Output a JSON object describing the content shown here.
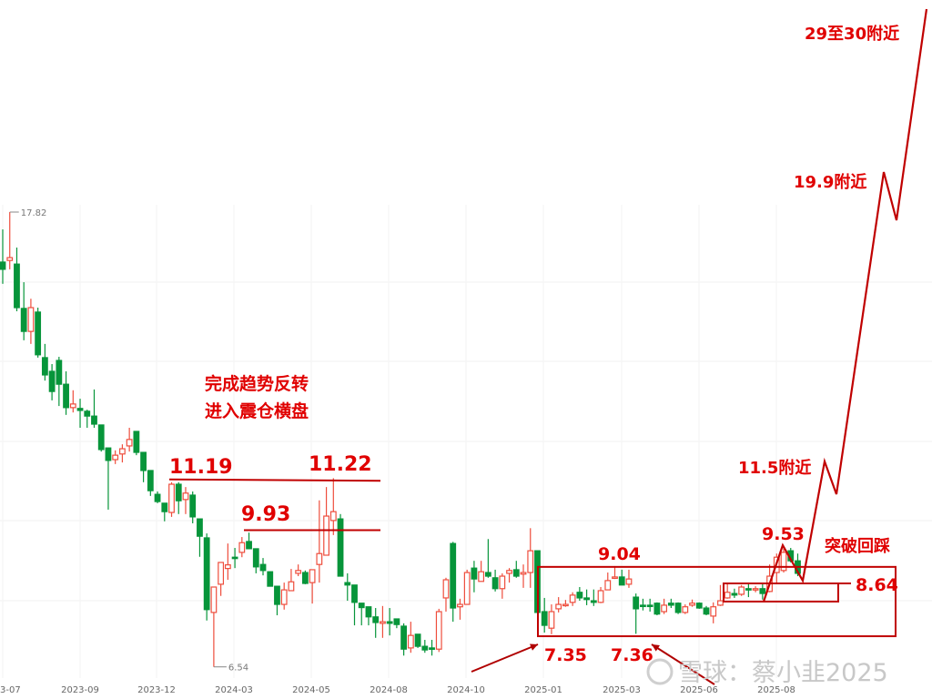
{
  "chart_data": {
    "type": "candlestick",
    "period": "weekly",
    "up_color": "#ee4d3c",
    "down_color": "#07953a",
    "up_style": "hollow",
    "down_style": "filled",
    "grid": true,
    "x_tick_labels": [
      "3-07",
      "2023-09",
      "2023-12",
      "2024-03",
      "2024-05",
      "2024-08",
      "2024-10",
      "2025-01",
      "2025-03",
      "2025-06",
      "2025-08"
    ],
    "extreme_labels": {
      "high": "17.82",
      "low": "6.54"
    },
    "ohlc_columns": [
      "open",
      "high",
      "low",
      "close"
    ],
    "ohlc": [
      [
        16.58,
        17.39,
        16.04,
        16.4
      ],
      [
        16.62,
        17.82,
        16.4,
        16.69
      ],
      [
        16.53,
        16.94,
        15.36,
        15.45
      ],
      [
        15.43,
        16.08,
        14.64,
        14.86
      ],
      [
        14.86,
        15.67,
        14.55,
        15.45
      ],
      [
        15.34,
        15.45,
        14.21,
        14.28
      ],
      [
        14.21,
        14.55,
        13.64,
        13.78
      ],
      [
        13.87,
        14.05,
        13.15,
        13.37
      ],
      [
        14.14,
        14.23,
        13.01,
        13.55
      ],
      [
        13.55,
        13.87,
        12.79,
        12.97
      ],
      [
        12.97,
        13.4,
        12.85,
        13.06
      ],
      [
        12.95,
        13.19,
        12.47,
        12.9
      ],
      [
        12.88,
        12.92,
        12.47,
        12.76
      ],
      [
        12.76,
        13.42,
        12.47,
        12.56
      ],
      [
        12.54,
        12.54,
        11.88,
        11.93
      ],
      [
        11.97,
        11.97,
        10.44,
        11.66
      ],
      [
        11.68,
        11.91,
        11.57,
        11.79
      ],
      [
        11.82,
        12.06,
        11.61,
        11.95
      ],
      [
        12.02,
        12.47,
        11.88,
        12.18
      ],
      [
        12.38,
        12.38,
        11.79,
        11.86
      ],
      [
        11.86,
        11.86,
        11.12,
        11.41
      ],
      [
        11.41,
        11.41,
        10.78,
        10.91
      ],
      [
        10.82,
        10.89,
        10.6,
        10.64
      ],
      [
        10.6,
        10.6,
        10.15,
        10.39
      ],
      [
        10.37,
        11.12,
        10.26,
        11.07
      ],
      [
        11.07,
        11.12,
        10.33,
        10.66
      ],
      [
        10.69,
        11.0,
        10.33,
        10.85
      ],
      [
        10.8,
        10.89,
        10.1,
        10.26
      ],
      [
        10.21,
        10.21,
        9.27,
        9.78
      ],
      [
        9.74,
        9.85,
        7.69,
        7.96
      ],
      [
        7.89,
        8.52,
        6.54,
        8.52
      ],
      [
        8.59,
        9.13,
        8.3,
        9.13
      ],
      [
        8.98,
        9.6,
        8.7,
        9.07
      ],
      [
        9.26,
        9.49,
        8.99,
        9.24
      ],
      [
        9.38,
        9.76,
        9.26,
        9.62
      ],
      [
        9.65,
        9.87,
        9.47,
        9.47
      ],
      [
        9.47,
        9.47,
        8.86,
        9.02
      ],
      [
        9.08,
        9.24,
        8.81,
        8.93
      ],
      [
        8.9,
        8.9,
        8.54,
        8.54
      ],
      [
        8.54,
        8.54,
        7.82,
        8.09
      ],
      [
        8.09,
        8.63,
        7.96,
        8.45
      ],
      [
        8.43,
        8.97,
        8.43,
        8.65
      ],
      [
        8.86,
        9.08,
        8.79,
        8.93
      ],
      [
        8.88,
        8.93,
        8.59,
        8.61
      ],
      [
        8.63,
        8.95,
        8.11,
        8.95
      ],
      [
        9.08,
        10.67,
        8.63,
        9.35
      ],
      [
        9.31,
        11.0,
        9.31,
        10.28
      ],
      [
        10.17,
        11.22,
        9.81,
        10.39
      ],
      [
        10.21,
        10.33,
        8.79,
        8.79
      ],
      [
        8.63,
        8.86,
        8.18,
        8.57
      ],
      [
        8.57,
        8.57,
        7.57,
        8.14
      ],
      [
        8.12,
        8.12,
        7.57,
        8.01
      ],
      [
        8.03,
        8.03,
        7.57,
        7.78
      ],
      [
        7.78,
        8.0,
        7.26,
        7.64
      ],
      [
        7.62,
        8.05,
        7.26,
        7.66
      ],
      [
        7.66,
        8.0,
        7.32,
        7.62
      ],
      [
        7.73,
        7.73,
        7.5,
        7.59
      ],
      [
        7.55,
        7.62,
        6.82,
        6.98
      ],
      [
        7.01,
        7.66,
        6.89,
        7.32
      ],
      [
        7.35,
        7.35,
        7.01,
        7.05
      ],
      [
        7.05,
        7.21,
        6.89,
        6.96
      ],
      [
        7.01,
        7.21,
        6.82,
        6.98
      ],
      [
        6.98,
        7.98,
        6.91,
        7.91
      ],
      [
        8.25,
        8.75,
        7.91,
        8.7
      ],
      [
        9.6,
        9.64,
        7.66,
        8.0
      ],
      [
        8.03,
        8.23,
        7.71,
        8.09
      ],
      [
        8.09,
        8.95,
        8.09,
        8.88
      ],
      [
        8.99,
        9.17,
        8.39,
        8.72
      ],
      [
        8.66,
        9.17,
        8.66,
        8.9
      ],
      [
        8.88,
        9.71,
        8.75,
        8.79
      ],
      [
        8.75,
        8.95,
        8.41,
        8.48
      ],
      [
        8.48,
        8.86,
        8.23,
        8.79
      ],
      [
        8.86,
        8.99,
        8.63,
        8.93
      ],
      [
        8.95,
        9.17,
        8.75,
        8.79
      ],
      [
        8.84,
        9.08,
        8.5,
        8.88
      ],
      [
        8.88,
        9.98,
        8.5,
        9.42
      ],
      [
        9.42,
        9.42,
        7.89,
        7.89
      ],
      [
        7.91,
        8.25,
        7.39,
        7.57
      ],
      [
        7.5,
        8.09,
        7.35,
        7.91
      ],
      [
        7.98,
        8.27,
        7.89,
        8.09
      ],
      [
        8.07,
        8.2,
        8.03,
        8.09
      ],
      [
        8.14,
        8.39,
        8.05,
        8.32
      ],
      [
        8.39,
        8.52,
        8.18,
        8.25
      ],
      [
        8.25,
        8.46,
        8.07,
        8.21
      ],
      [
        8.18,
        8.46,
        8.05,
        8.14
      ],
      [
        8.14,
        8.52,
        8.12,
        8.43
      ],
      [
        8.45,
        8.88,
        8.45,
        8.68
      ],
      [
        8.75,
        9.04,
        8.72,
        8.77
      ],
      [
        8.77,
        8.95,
        8.57,
        8.57
      ],
      [
        8.59,
        8.95,
        8.5,
        8.72
      ],
      [
        8.27,
        8.36,
        7.36,
        7.98
      ],
      [
        8.07,
        8.23,
        7.94,
        8.05
      ],
      [
        8.07,
        8.23,
        7.91,
        8.05
      ],
      [
        8.12,
        8.14,
        7.82,
        7.85
      ],
      [
        7.91,
        8.23,
        7.85,
        8.07
      ],
      [
        8.12,
        8.23,
        8.0,
        8.07
      ],
      [
        8.12,
        8.14,
        7.85,
        7.89
      ],
      [
        7.89,
        8.09,
        7.85,
        8.03
      ],
      [
        8.07,
        8.21,
        8.03,
        8.12
      ],
      [
        8.12,
        8.14,
        7.98,
        8.0
      ],
      [
        8.0,
        8.05,
        7.82,
        7.85
      ],
      [
        7.8,
        8.14,
        7.62,
        8.03
      ],
      [
        8.07,
        8.57,
        8.05,
        8.18
      ],
      [
        8.25,
        8.59,
        8.23,
        8.39
      ],
      [
        8.36,
        8.48,
        8.25,
        8.32
      ],
      [
        8.34,
        8.57,
        8.3,
        8.52
      ],
      [
        8.48,
        8.63,
        8.27,
        8.45
      ],
      [
        8.45,
        8.54,
        8.39,
        8.48
      ],
      [
        8.48,
        8.63,
        8.21,
        8.36
      ],
      [
        8.41,
        9.08,
        8.39,
        8.79
      ],
      [
        8.88,
        9.35,
        8.59,
        9.26
      ],
      [
        8.93,
        9.53,
        8.88,
        9.38
      ],
      [
        9.42,
        9.49,
        9.13,
        9.17
      ],
      [
        9.17,
        9.35,
        8.79,
        8.86
      ]
    ],
    "annotations": {
      "resistance_1": "11.19",
      "resistance_2": "11.22",
      "resistance_3": "9.93",
      "note_line1": "完成趋势反转",
      "note_line2": "进入震仓横盘",
      "box_high": "9.04",
      "low_1": "7.35",
      "low_2": "7.36",
      "peak": "9.53",
      "support": "8.64",
      "breakout_note": "突破回踩",
      "target_1": "11.5附近",
      "target_2": "19.9附近",
      "target_3": "29至30附近"
    },
    "annotation_levels": {
      "line_11_19": 11.19,
      "line_9_93": 9.93,
      "box_top": 9.02,
      "box_bottom": 7.3,
      "small_box_top": 8.61,
      "small_box_bottom": 8.16
    },
    "annotation_color": "#c00000"
  },
  "watermark": "雪球：蔡小韭2025"
}
